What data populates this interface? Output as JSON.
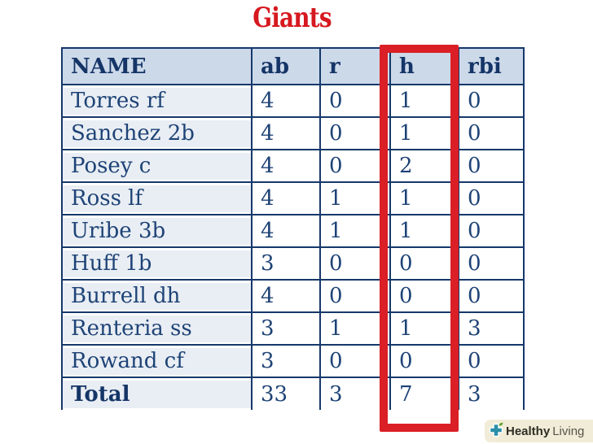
{
  "page": {
    "title": "Giants"
  },
  "colors": {
    "title_red": "#d6191f",
    "highlight_red": "#da1f26",
    "border_navy": "#16386b",
    "text_navy": "#1e4376",
    "header_text": "#153567",
    "header_bg": "#ccd9e9",
    "name_col_bg": "#e9eef4",
    "logo_bg": "#f1ecd7",
    "logo_plus_teal": "#2b8fa8",
    "logo_leaf_green": "#5fa32c"
  },
  "table": {
    "columns": [
      "NAME",
      "ab",
      "r",
      "h",
      "rbi"
    ],
    "highlighted_column": "h",
    "rows": [
      {
        "name": "Torres rf",
        "ab": "4",
        "r": "0",
        "h": "1",
        "rbi": "0"
      },
      {
        "name": "Sanchez 2b",
        "ab": "4",
        "r": "0",
        "h": "1",
        "rbi": "0"
      },
      {
        "name": "Posey c",
        "ab": "4",
        "r": "0",
        "h": "2",
        "rbi": "0"
      },
      {
        "name": "Ross lf",
        "ab": "4",
        "r": "1",
        "h": "1",
        "rbi": "0"
      },
      {
        "name": "Uribe 3b",
        "ab": "4",
        "r": "1",
        "h": "1",
        "rbi": "0"
      },
      {
        "name": "Huff 1b",
        "ab": "3",
        "r": "0",
        "h": "0",
        "rbi": "0"
      },
      {
        "name": "Burrell dh",
        "ab": "4",
        "r": "0",
        "h": "0",
        "rbi": "0"
      },
      {
        "name": "Renteria ss",
        "ab": "3",
        "r": "1",
        "h": "1",
        "rbi": "3"
      },
      {
        "name": "Rowand cf",
        "ab": "3",
        "r": "0",
        "h": "0",
        "rbi": "0"
      },
      {
        "name": "Total",
        "ab": "33",
        "r": "3",
        "h": "7",
        "rbi": "3",
        "total": true
      }
    ]
  },
  "watermark": {
    "name_bold": "Healthy",
    "name_regular": "Living",
    "icon": "plus-leaf-icon"
  },
  "chart_data": {
    "type": "table",
    "title": "Giants",
    "columns": [
      "NAME",
      "ab",
      "r",
      "h",
      "rbi"
    ],
    "rows": [
      [
        "Torres rf",
        4,
        0,
        1,
        0
      ],
      [
        "Sanchez 2b",
        4,
        0,
        1,
        0
      ],
      [
        "Posey c",
        4,
        0,
        2,
        0
      ],
      [
        "Ross lf",
        4,
        1,
        1,
        0
      ],
      [
        "Uribe 3b",
        4,
        1,
        1,
        0
      ],
      [
        "Huff 1b",
        3,
        0,
        0,
        0
      ],
      [
        "Burrell dh",
        4,
        0,
        0,
        0
      ],
      [
        "Renteria ss",
        3,
        1,
        1,
        3
      ],
      [
        "Rowand cf",
        3,
        0,
        0,
        0
      ],
      [
        "Total",
        33,
        3,
        7,
        3
      ]
    ],
    "annotations": [
      "red rectangle outlines the h (hits) column from header through the Total row"
    ],
    "legend_position": "none",
    "grid": true
  }
}
